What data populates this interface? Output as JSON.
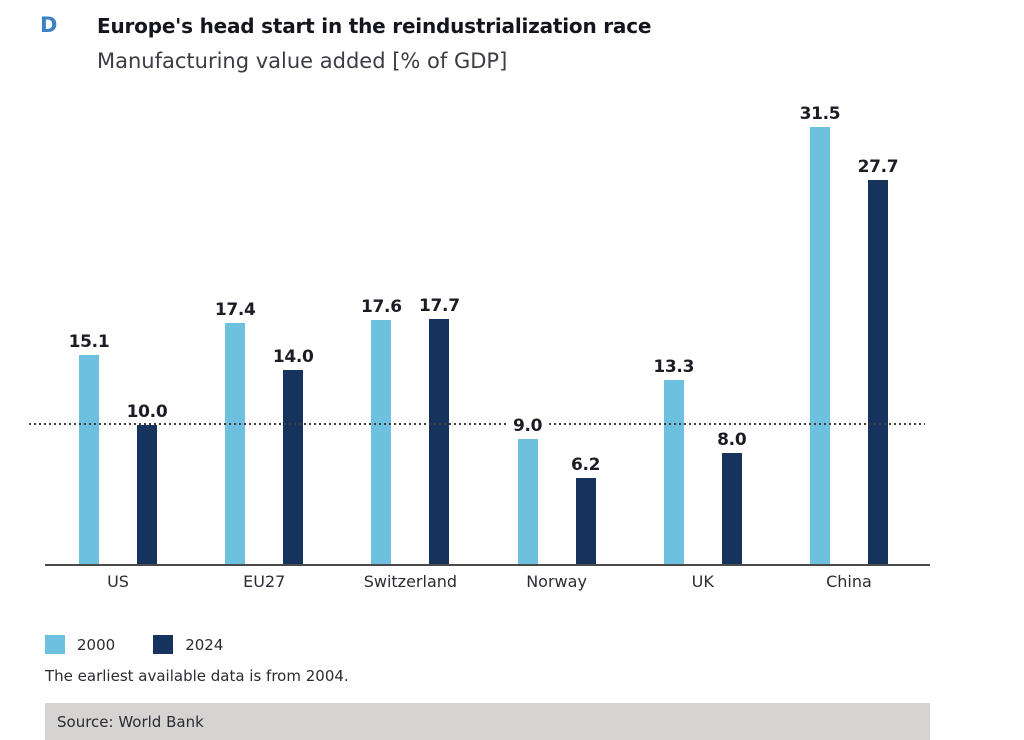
{
  "panel_label": "D",
  "title": "Europe's head start in the reindustrialization race",
  "subtitle": "Manufacturing value added [% of GDP]",
  "chart_data": {
    "type": "bar",
    "categories": [
      "US",
      "EU27",
      "Switzerland",
      "Norway",
      "UK",
      "China"
    ],
    "series": [
      {
        "name": "2000",
        "color": "#6EC0DF",
        "values": [
          15.1,
          17.4,
          17.6,
          9.0,
          13.3,
          31.5
        ]
      },
      {
        "name": "2024",
        "color": "#16335E",
        "values": [
          10.0,
          14.0,
          17.7,
          6.2,
          8.0,
          27.7
        ]
      }
    ],
    "value_labels": [
      [
        "15.1",
        "10.0"
      ],
      [
        "17.4",
        "14.0"
      ],
      [
        "17.6",
        "17.7"
      ],
      [
        "9.0",
        "6.2"
      ],
      [
        "13.3",
        "8.0"
      ],
      [
        "31.5",
        "27.7"
      ]
    ],
    "reference_line": 10,
    "ylim": [
      0,
      33.5
    ],
    "grid": false,
    "legend_position": "bottom-left",
    "title": "Europe's head start in the reindustrialization race",
    "subtitle": "Manufacturing value added [% of GDP]"
  },
  "legend": [
    {
      "label": "2000",
      "color": "#6EC0DF"
    },
    {
      "label": "2024",
      "color": "#16335E"
    }
  ],
  "footnote": "The earliest available data is from 2004.",
  "source": "Source: World Bank",
  "colors": {
    "accent_blue": "#3C82C4",
    "bar_2000": "#6EC0DF",
    "bar_2024": "#16335E",
    "axis": "#4A4A4A",
    "reference_dots": "#3E3E3E",
    "source_bg": "#D5D4D2"
  }
}
